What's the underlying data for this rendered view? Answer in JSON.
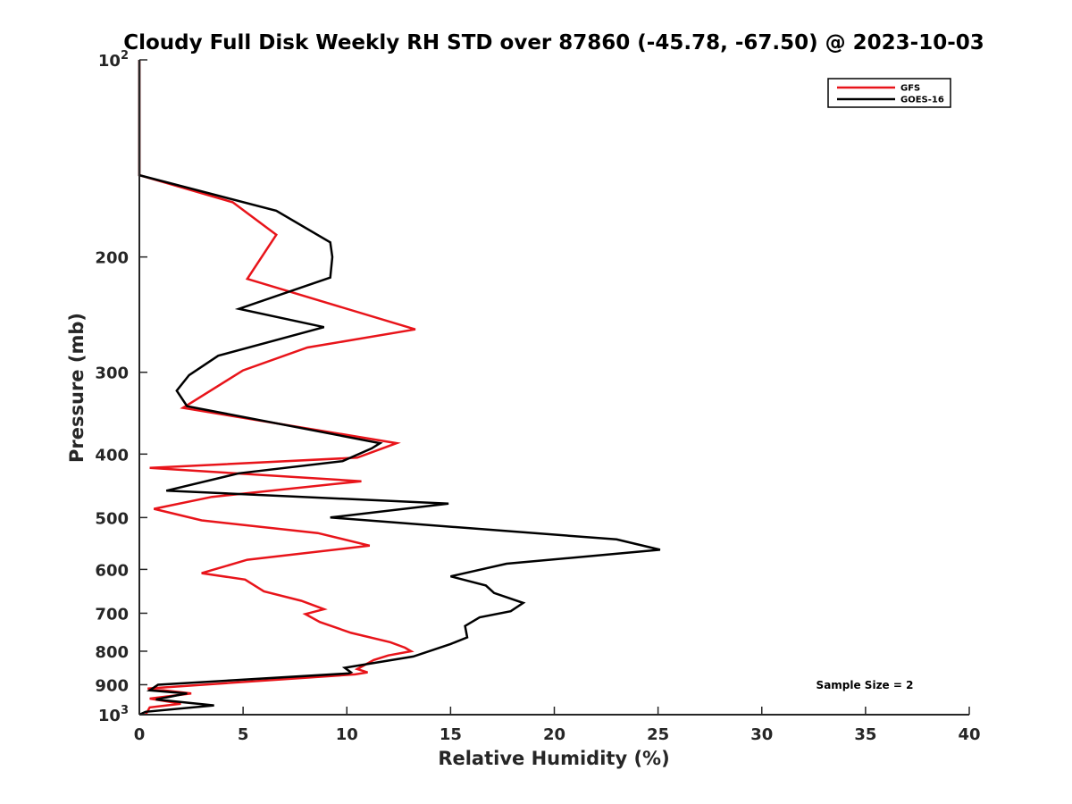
{
  "chart_data": {
    "type": "line",
    "title": "Cloudy Full Disk Weekly RH STD over 87860 (-45.78, -67.50) @ 2023-10-03",
    "xlabel": "Relative Humidity (%)",
    "ylabel": "Pressure (mb)",
    "xlim": [
      0,
      40
    ],
    "ylim": [
      100,
      1000
    ],
    "y_scale": "log",
    "y_reversed": true,
    "x_ticks": [
      "0",
      "5",
      "10",
      "15",
      "20",
      "25",
      "30",
      "35",
      "40"
    ],
    "y_ticks": [
      {
        "value": 100,
        "label": "10",
        "sup": "2"
      },
      {
        "value": 200,
        "label": "200"
      },
      {
        "value": 300,
        "label": "300"
      },
      {
        "value": 400,
        "label": "400"
      },
      {
        "value": 500,
        "label": "500"
      },
      {
        "value": 600,
        "label": "600"
      },
      {
        "value": 700,
        "label": "700"
      },
      {
        "value": 800,
        "label": "800"
      },
      {
        "value": 900,
        "label": "900"
      },
      {
        "value": 1000,
        "label": "10",
        "sup": "3"
      }
    ],
    "legend_position": "top-right",
    "grid": false,
    "annotation": "Sample Size = 2",
    "series": [
      {
        "name": "GFS",
        "color": "#e8141a",
        "points": [
          [
            0,
            100
          ],
          [
            0,
            150
          ],
          [
            4.5,
            165
          ],
          [
            6.6,
            185
          ],
          [
            5.2,
            216
          ],
          [
            13.3,
            258
          ],
          [
            8.1,
            275
          ],
          [
            5.0,
            298
          ],
          [
            2.1,
            340
          ],
          [
            12.4,
            385
          ],
          [
            10.5,
            405
          ],
          [
            0.5,
            420
          ],
          [
            10.7,
            440
          ],
          [
            3.5,
            465
          ],
          [
            0.7,
            485
          ],
          [
            3.0,
            505
          ],
          [
            8.6,
            528
          ],
          [
            11.1,
            552
          ],
          [
            5.2,
            580
          ],
          [
            3.0,
            608
          ],
          [
            5.1,
            622
          ],
          [
            6.0,
            648
          ],
          [
            7.8,
            670
          ],
          [
            8.9,
            690
          ],
          [
            8.0,
            702
          ],
          [
            8.7,
            722
          ],
          [
            10.2,
            750
          ],
          [
            12.1,
            775
          ],
          [
            12.8,
            790
          ],
          [
            13.1,
            800
          ],
          [
            12.0,
            812
          ],
          [
            11.3,
            825
          ],
          [
            10.5,
            852
          ],
          [
            11.0,
            862
          ],
          [
            10.4,
            868
          ],
          [
            0.4,
            912
          ],
          [
            2.5,
            928
          ],
          [
            0.5,
            945
          ],
          [
            2.0,
            962
          ],
          [
            0.5,
            975
          ],
          [
            0.3,
            1000
          ]
        ]
      },
      {
        "name": "GOES-16",
        "color": "#000000",
        "points": [
          [
            0,
            100
          ],
          [
            0,
            150
          ],
          [
            6.6,
            170
          ],
          [
            9.2,
            190
          ],
          [
            9.3,
            200
          ],
          [
            9.2,
            215
          ],
          [
            4.8,
            240
          ],
          [
            8.9,
            256
          ],
          [
            3.8,
            283
          ],
          [
            2.4,
            303
          ],
          [
            1.8,
            320
          ],
          [
            2.3,
            338
          ],
          [
            11.6,
            385
          ],
          [
            11.2,
            392
          ],
          [
            9.8,
            410
          ],
          [
            4.8,
            428
          ],
          [
            1.3,
            455
          ],
          [
            14.9,
            476
          ],
          [
            9.2,
            500
          ],
          [
            23.0,
            540
          ],
          [
            25.1,
            560
          ],
          [
            17.7,
            588
          ],
          [
            15.0,
            615
          ],
          [
            16.7,
            635
          ],
          [
            17.1,
            652
          ],
          [
            18.5,
            675
          ],
          [
            17.9,
            695
          ],
          [
            16.4,
            710
          ],
          [
            15.7,
            732
          ],
          [
            15.8,
            762
          ],
          [
            15.0,
            780
          ],
          [
            13.2,
            815
          ],
          [
            9.9,
            848
          ],
          [
            10.2,
            862
          ],
          [
            10.1,
            865
          ],
          [
            0.9,
            900
          ],
          [
            0.5,
            918
          ],
          [
            2.3,
            928
          ],
          [
            0.8,
            948
          ],
          [
            3.6,
            968
          ],
          [
            0.3,
            990
          ],
          [
            0.0,
            1000
          ]
        ]
      }
    ]
  }
}
